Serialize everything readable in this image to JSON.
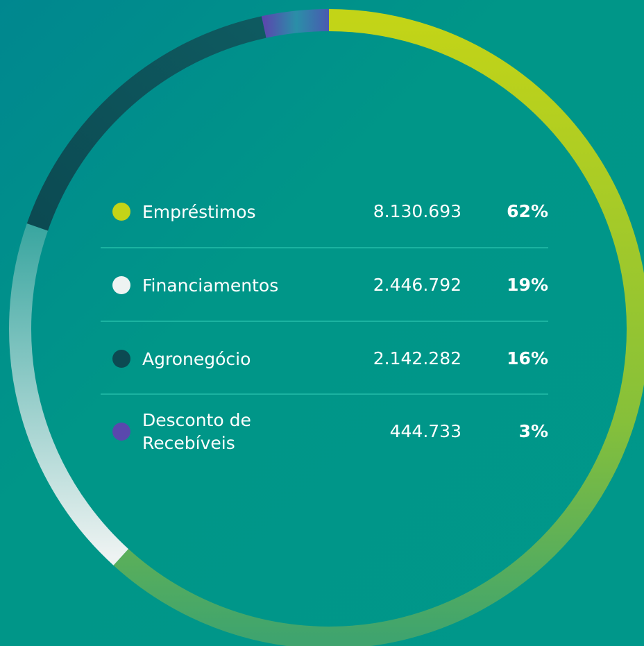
{
  "chart_data": {
    "type": "pie",
    "donut": true,
    "categories": [
      "Empréstimos",
      "Financiamentos",
      "Agronegócio",
      "Desconto de Recebíveis"
    ],
    "values": [
      8130693,
      2446792,
      2142282,
      444733
    ],
    "value_labels": [
      "8.130.693",
      "2.446.792",
      "2.142.282",
      "444.733"
    ],
    "shares": [
      62,
      19,
      16,
      3
    ],
    "share_labels": [
      "62%",
      "19%",
      "16%",
      "3%"
    ],
    "colors": [
      "#c3d417",
      "#eef3f2",
      "#0c4a52",
      "#5a48ad"
    ]
  }
}
